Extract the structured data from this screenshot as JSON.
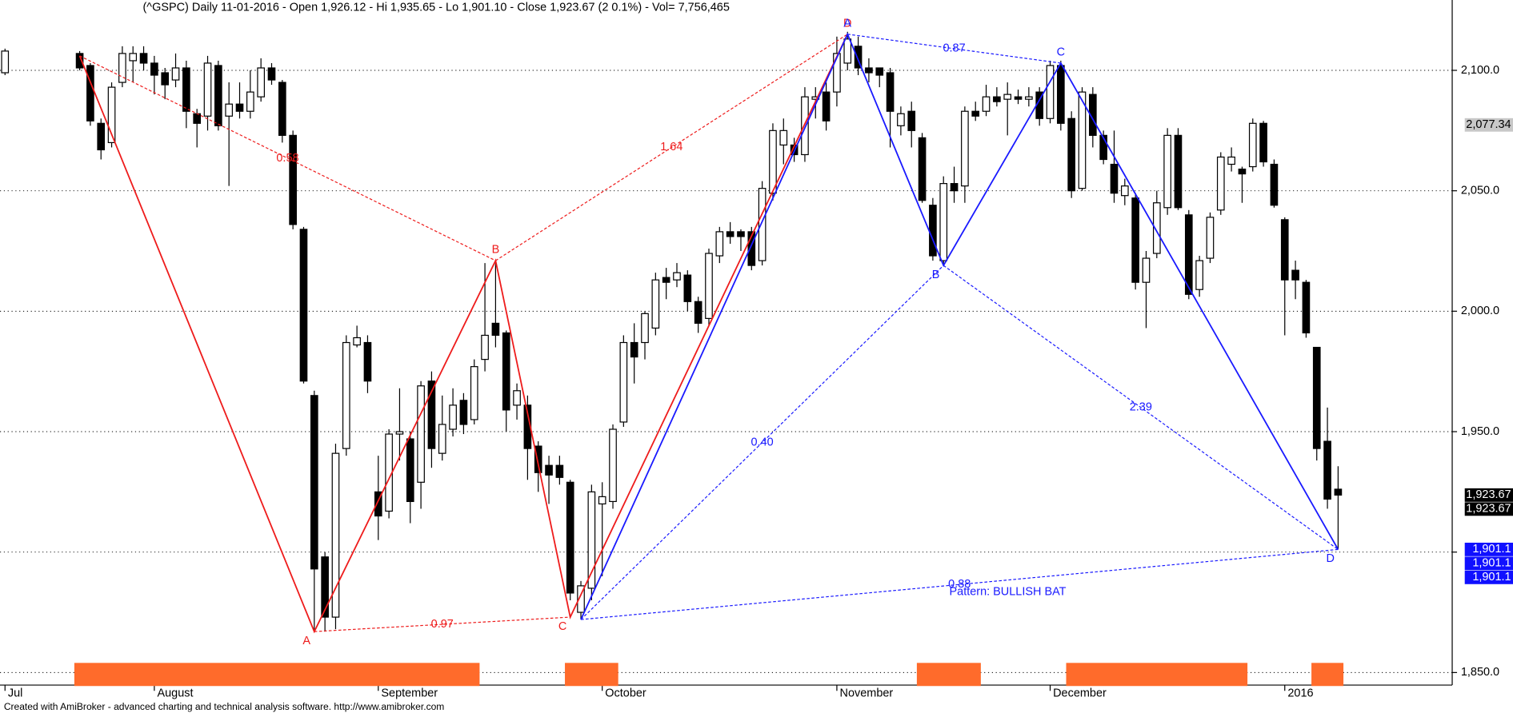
{
  "chart_data": {
    "type": "candlestick",
    "title": "(^GSPC) Daily  11-01-2016  -  Open 1,926.12  -  Hi 1,935.65  -  Lo 1,901.10  -  Close 1,923.67 (2 0.1%)  -  Vol= 7,756,465",
    "footer": "Created with AmiBroker - advanced charting and technical analysis software. http://www.amibroker.com",
    "up_color": "#ffffff",
    "down_color": "#000000",
    "xlim": [
      -7.47,
      128.7
    ],
    "ylim": [
      1844.8,
      2129.2
    ],
    "grid": true,
    "xticks": [
      {
        "value": -7,
        "label": "Jul"
      },
      {
        "value": 7,
        "label": "August"
      },
      {
        "value": 28,
        "label": "September"
      },
      {
        "value": 49,
        "label": "October"
      },
      {
        "value": 71,
        "label": "November"
      },
      {
        "value": 91,
        "label": "December"
      },
      {
        "value": 113,
        "label": "2016"
      }
    ],
    "yticks": [
      {
        "value": 1850,
        "label": "1,850.0"
      },
      {
        "value": 1900,
        "label": null
      },
      {
        "value": 1950,
        "label": "1,950.0"
      },
      {
        "value": 2000,
        "label": "2,000.0"
      },
      {
        "value": 2050,
        "label": "2,050.0"
      },
      {
        "value": 2100,
        "label": "2,100.0"
      }
    ],
    "x": [
      -7,
      0,
      1,
      2,
      3,
      4,
      5,
      6,
      7,
      8,
      9,
      10,
      11,
      12,
      13,
      14,
      15,
      16,
      17,
      18,
      19,
      20,
      21,
      22,
      23,
      24,
      25,
      26,
      27,
      28,
      29,
      30,
      31,
      32,
      33,
      34,
      35,
      36,
      37,
      38,
      39,
      40,
      41,
      42,
      43,
      44,
      45,
      46,
      47,
      48,
      49,
      50,
      51,
      52,
      53,
      54,
      55,
      56,
      57,
      58,
      59,
      60,
      61,
      62,
      63,
      64,
      65,
      66,
      67,
      68,
      69,
      70,
      71,
      72,
      73,
      74,
      75,
      76,
      77,
      78,
      79,
      80,
      81,
      82,
      83,
      84,
      85,
      86,
      87,
      88,
      89,
      90,
      91,
      92,
      93,
      94,
      95,
      96,
      97,
      98,
      99,
      100,
      101,
      102,
      103,
      104,
      105,
      106,
      107,
      108,
      109,
      110,
      111,
      112,
      113,
      114,
      115,
      116,
      117,
      118
    ],
    "open": [
      2099,
      2107,
      2102,
      2078,
      2070,
      2095,
      2104,
      2107,
      2103,
      2099,
      2096,
      2101,
      2082,
      2081,
      2102,
      2081,
      2086,
      2083,
      2089,
      2101,
      2095,
      2073,
      2034,
      1965,
      1898,
      1873,
      1943,
      1986,
      1987,
      1925,
      1917,
      1949,
      1947,
      1929,
      1971,
      1941,
      1951,
      1963,
      1955,
      1980,
      1995,
      1991,
      1961,
      1961,
      1944,
      1936,
      1936,
      1929,
      1875,
      1885,
      1920,
      1921,
      1954,
      1987,
      1987,
      1993,
      2014,
      2013,
      2015,
      2004,
      1997,
      2023,
      2033,
      2033,
      2033,
      2021,
      2049,
      2069,
      2069,
      2065,
      2088,
      2091,
      2091,
      2103,
      2110,
      2101,
      2101,
      2099,
      2077,
      2083,
      2072,
      2044,
      2021,
      2053,
      2052,
      2083,
      2083,
      2089,
      2088,
      2089,
      2088,
      2091,
      2080,
      2102,
      2080,
      2051,
      2090,
      2073,
      2061,
      2048,
      2047,
      2012,
      2024,
      2043,
      2073,
      2040,
      2009,
      2022,
      2042,
      2061,
      2059,
      2060,
      2078,
      2061,
      2038,
      2017,
      2012,
      1985,
      1946,
      1926.12
    ],
    "high": [
      2109,
      2108,
      2103,
      2080,
      2095,
      2110,
      2110,
      2110,
      2106,
      2101,
      2107,
      2104,
      2084,
      2106,
      2104,
      2095,
      2095,
      2100,
      2105,
      2103,
      2096,
      2075,
      2035,
      1967,
      1900,
      1945,
      1990,
      1994,
      1990,
      1940,
      1951,
      1968,
      1950,
      1971,
      1975,
      1965,
      1968,
      1966,
      1980,
      2020,
      2020,
      1992,
      1970,
      1965,
      1946,
      1940,
      1940,
      1930,
      1888,
      1928,
      1929,
      1953,
      1990,
      1995,
      2000,
      2016,
      2018,
      2020,
      2017,
      2006,
      2026,
      2035,
      2037,
      2034,
      2035,
      2054,
      2078,
      2080,
      2072,
      2093,
      2093,
      2095,
      2114,
      2116,
      2114,
      2105,
      2101,
      2101,
      2085,
      2087,
      2074,
      2047,
      2056,
      2060,
      2085,
      2087,
      2094,
      2093,
      2095,
      2092,
      2093,
      2093,
      2104,
      2104,
      2083,
      2093,
      2093,
      2075,
      2075,
      2055,
      2049,
      2025,
      2050,
      2076,
      2076,
      2042,
      2023,
      2041,
      2066,
      2068,
      2060,
      2080,
      2079,
      2063,
      2039,
      2021,
      2013,
      1985,
      1960,
      1935.65
    ],
    "low": [
      2098,
      2100,
      2077,
      2063,
      2068,
      2093,
      2095,
      2100,
      2090,
      2088,
      2093,
      2076,
      2068,
      2075,
      2075,
      2052,
      2080,
      2080,
      2087,
      2094,
      2070,
      2034,
      1970,
      1867,
      1867,
      1868,
      1940,
      1985,
      1966,
      1905,
      1914,
      1938,
      1912,
      1918,
      1935,
      1938,
      1948,
      1949,
      1953,
      1975,
      1985,
      1950,
      1955,
      1930,
      1925,
      1920,
      1928,
      1880,
      1872,
      1880,
      1890,
      1918,
      1952,
      1970,
      1980,
      1990,
      2005,
      2010,
      2000,
      1991,
      1994,
      2020,
      2028,
      2025,
      2017,
      2019,
      2046,
      2061,
      2062,
      2062,
      2080,
      2075,
      2085,
      2100,
      2098,
      2095,
      2093,
      2068,
      2073,
      2068,
      2045,
      2021,
      2019,
      2045,
      2045,
      2079,
      2081,
      2085,
      2073,
      2086,
      2085,
      2077,
      2078,
      2075,
      2047,
      2050,
      2068,
      2061,
      2045,
      2044,
      2009,
      1993,
      2022,
      2040,
      2042,
      2005,
      2006,
      2020,
      2040,
      2058,
      2045,
      2058,
      2060,
      2043,
      1990,
      2005,
      1989,
      1938,
      1918,
      1901.1
    ],
    "close": [
      2108,
      2101,
      2079,
      2067,
      2093,
      2107,
      2107,
      2103,
      2098,
      2094,
      2101,
      2083,
      2078,
      2103,
      2077,
      2086,
      2083,
      2091,
      2101,
      2096,
      2073,
      2036,
      1971,
      1893,
      1873,
      1941,
      1987,
      1989,
      1971,
      1915,
      1949,
      1950,
      1921,
      1969,
      1943,
      1953,
      1961,
      1953,
      1977,
      1990,
      1990,
      1959,
      1967,
      1943,
      1933,
      1932,
      1931,
      1883,
      1886,
      1925,
      1923,
      1951,
      1987,
      1981,
      1999,
      2013,
      2012,
      2016,
      2004,
      1995,
      2024,
      2033,
      2031,
      2031,
      2019,
      2051,
      2075,
      2075,
      2065,
      2089,
      2089,
      2079,
      2107,
      2113,
      2101,
      2099,
      2098,
      2083,
      2082,
      2075,
      2046,
      2023,
      2053,
      2050,
      2083,
      2081,
      2089,
      2087,
      2090,
      2088,
      2089,
      2080,
      2102,
      2078,
      2050,
      2091,
      2073,
      2063,
      2049,
      2052,
      2012,
      2022,
      2045,
      2073,
      2043,
      2007,
      2021,
      2039,
      2064,
      2064,
      2057,
      2078,
      2062,
      2044,
      2013,
      2013,
      1991,
      1943,
      1922,
      1923.67
    ],
    "patterns": [
      {
        "color": "#ee1c1c",
        "x": [
          0,
          22,
          39,
          46,
          72
        ],
        "y": [
          2106,
          1867,
          2021,
          1873,
          2115
        ],
        "point_labels": [
          null,
          "A",
          "B",
          "C",
          "D"
        ],
        "ratios": [
          {
            "between": [
              0,
              2
            ],
            "label": "0.58"
          },
          {
            "between": [
              1,
              3
            ],
            "label": "0.97"
          },
          {
            "between": [
              2,
              4
            ],
            "label": "1.64"
          }
        ]
      },
      {
        "color": "#1a1aff",
        "x": [
          47,
          72,
          81,
          92,
          118
        ],
        "y": [
          1872,
          2115,
          2019,
          2103,
          1901.1
        ],
        "point_labels": [
          null,
          "A",
          "B",
          "C",
          "D"
        ],
        "ratios": [
          {
            "between": [
              0,
              2
            ],
            "label": "0.40"
          },
          {
            "between": [
              1,
              3
            ],
            "label": "0.87"
          },
          {
            "between": [
              2,
              4
            ],
            "label": "2.39"
          },
          {
            "between": [
              0,
              4
            ],
            "label": "0.88"
          }
        ],
        "name": "Pattern: BULLISH BAT"
      }
    ],
    "signal_bands": {
      "color": "#ff6b2b",
      "ranges": [
        [
          0,
          37
        ],
        [
          46,
          50
        ],
        [
          79,
          84
        ],
        [
          93,
          109
        ],
        [
          116,
          118
        ]
      ]
    },
    "price_tags": [
      {
        "value": 2077.34,
        "label": "2,077.34",
        "bg": "#c8c8c8",
        "fg": "#000000"
      },
      {
        "value": 1923.67,
        "label": "1,923.67",
        "bg": "#000000",
        "fg": "#ffffff"
      },
      {
        "value": 1923.67,
        "label": "1,923.67",
        "bg": "#000000",
        "fg": "#ffffff"
      },
      {
        "value": 1901.1,
        "label": "1,901.1",
        "bg": "#1010ff",
        "fg": "#ffffff"
      },
      {
        "value": 1901.1,
        "label": "1,901.1",
        "bg": "#1010ff",
        "fg": "#ffffff"
      },
      {
        "value": 1901.1,
        "label": "1,901.1",
        "bg": "#1010ff",
        "fg": "#ffffff"
      }
    ]
  }
}
